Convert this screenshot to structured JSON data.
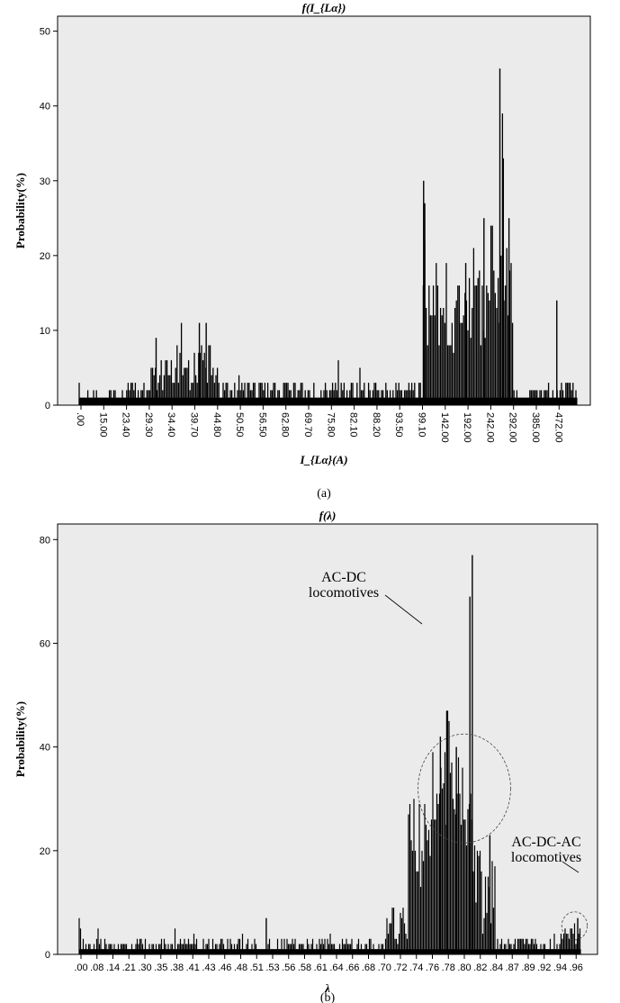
{
  "chart_data": [
    {
      "type": "bar",
      "panel_label": "(a)",
      "title": "f(I_{Lα})",
      "xlabel": "I_{Lα}(A)",
      "ylabel": "Probability(%)",
      "ylim": [
        0,
        52
      ],
      "yticks": [
        0,
        10,
        20,
        30,
        40,
        50
      ],
      "x_tick_labels": [
        ".00",
        "15.00",
        "23.40",
        "29.30",
        "34.40",
        "39.70",
        "44.80",
        "50.50",
        "56.50",
        "62.80",
        "69.70",
        "75.80",
        "82.10",
        "88.20",
        "93.50",
        "99.10",
        "142.00",
        "192.00",
        "242.00",
        "292.00",
        "385.00",
        "472.00"
      ],
      "grid": false,
      "legend": "none",
      "segments": [
        {
          "from_tick": 0,
          "to_tick": 2,
          "level": 1,
          "var": 1.5,
          "max": 5
        },
        {
          "from_tick": 2,
          "to_tick": 3,
          "level": 2,
          "var": 1,
          "max": 4
        },
        {
          "from_tick": 3,
          "to_tick": 4,
          "level": 4,
          "var": 2.5,
          "max": 9
        },
        {
          "from_tick": 4,
          "to_tick": 6,
          "level": 5,
          "var": 3.5,
          "max": 11
        },
        {
          "from_tick": 6,
          "to_tick": 15,
          "level": 2,
          "var": 1.5,
          "max": 7
        },
        {
          "from_tick": 15,
          "to_tick": 16,
          "level": 13,
          "var": 6,
          "max": 30
        },
        {
          "from_tick": 16,
          "to_tick": 17,
          "level": 11,
          "var": 5,
          "max": 19
        },
        {
          "from_tick": 17,
          "to_tick": 18,
          "level": 14,
          "var": 7,
          "max": 25
        },
        {
          "from_tick": 18,
          "to_tick": 19,
          "level": 16,
          "var": 9,
          "max": 45
        },
        {
          "from_tick": 19,
          "to_tick": 21,
          "level": 1.5,
          "var": 1,
          "max": 4
        },
        {
          "from_tick": 21,
          "to_tick": 21.8,
          "level": 2,
          "var": 1.5,
          "max": 14
        }
      ],
      "peaks": [
        [
          15.05,
          30
        ],
        [
          15.1,
          27
        ],
        [
          16.9,
          19
        ],
        [
          17.7,
          25
        ],
        [
          18.4,
          45
        ],
        [
          18.55,
          33
        ],
        [
          18.8,
          25
        ],
        [
          20.9,
          14
        ],
        [
          5.2,
          11
        ],
        [
          5.5,
          11
        ],
        [
          3.3,
          9
        ]
      ]
    },
    {
      "type": "bar",
      "panel_label": "(b)",
      "title": "f(λ)",
      "xlabel": "λ",
      "ylabel": "Probability(%)",
      "ylim": [
        0,
        83
      ],
      "yticks": [
        0,
        20,
        40,
        60,
        80
      ],
      "x_tick_labels": [
        ".00",
        ".08",
        ".14",
        ".21",
        ".30",
        ".35",
        ".38",
        ".41",
        ".43",
        ".46",
        ".48",
        ".51",
        ".53",
        ".56",
        ".58",
        ".61",
        ".64",
        ".66",
        ".68",
        ".70",
        ".72",
        ".74",
        ".76",
        ".78",
        ".80",
        ".82",
        ".84",
        ".87",
        ".89",
        ".92",
        ".94",
        ".96"
      ],
      "grid": false,
      "legend": "none",
      "segments": [
        {
          "from_tick": 0,
          "to_tick": 19,
          "level": 1.5,
          "var": 1.5,
          "max": 7
        },
        {
          "from_tick": 19,
          "to_tick": 20.5,
          "level": 5,
          "var": 4,
          "max": 12
        },
        {
          "from_tick": 20.5,
          "to_tick": 22,
          "level": 20,
          "var": 10,
          "max": 30
        },
        {
          "from_tick": 22,
          "to_tick": 24,
          "level": 33,
          "var": 10,
          "max": 47
        },
        {
          "from_tick": 24,
          "to_tick": 25,
          "level": 20,
          "var": 12,
          "max": 77
        },
        {
          "from_tick": 25,
          "to_tick": 26,
          "level": 12,
          "var": 9,
          "max": 23
        },
        {
          "from_tick": 26,
          "to_tick": 30,
          "level": 2,
          "var": 1.5,
          "max": 5
        },
        {
          "from_tick": 30,
          "to_tick": 31.3,
          "level": 4,
          "var": 2,
          "max": 7
        }
      ],
      "peaks": [
        [
          24.5,
          77
        ],
        [
          24.35,
          69
        ],
        [
          22.9,
          47
        ],
        [
          22.5,
          42
        ],
        [
          23.5,
          40
        ],
        [
          25.6,
          23
        ],
        [
          31.1,
          7
        ],
        [
          11.6,
          7
        ]
      ],
      "annotations": [
        {
          "line1": "AC-DC",
          "line2": "locomotives",
          "center_x_tick": 24.0,
          "center_y": 32,
          "rx_ticks": 2.9,
          "ry_value": 10.5
        },
        {
          "line1": "AC-DC-AC",
          "line2": "locomotives",
          "center_x_tick": 30.9,
          "center_y": 5.5,
          "rx_ticks": 0.8,
          "ry_value": 2.7
        }
      ]
    }
  ]
}
